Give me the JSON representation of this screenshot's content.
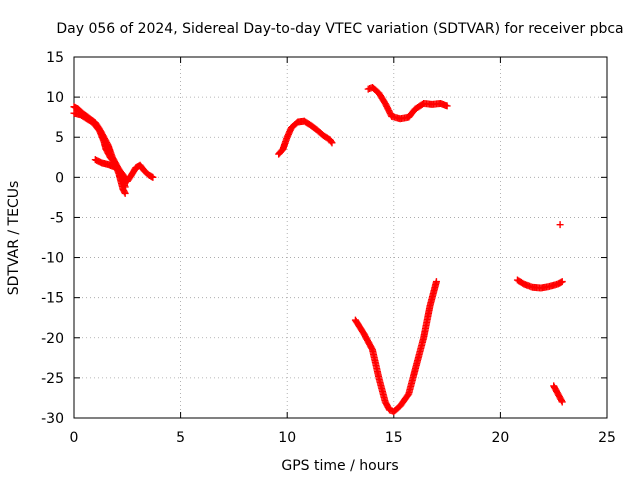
{
  "chart_data": {
    "type": "scatter",
    "title": "Day 056 of 2024, Sidereal Day-to-day VTEC variation (SDTVAR) for receiver pbca",
    "xlabel": "GPS time / hours",
    "ylabel": "SDTVAR / TECUs",
    "xlim": [
      0,
      25
    ],
    "ylim": [
      -30,
      15
    ],
    "xticks": [
      0,
      5,
      10,
      15,
      20,
      25
    ],
    "yticks": [
      15,
      10,
      5,
      0,
      -5,
      -10,
      -15,
      -20,
      -25,
      -30
    ],
    "grid": true,
    "marker": "plus",
    "color": "#ff0000",
    "series": [
      {
        "name": "arc-1",
        "points": [
          [
            0.0,
            8.8
          ],
          [
            0.2,
            8.5
          ],
          [
            0.4,
            8.0
          ],
          [
            0.6,
            7.6
          ],
          [
            0.8,
            7.2
          ],
          [
            1.0,
            6.8
          ],
          [
            1.2,
            6.0
          ],
          [
            1.4,
            5.0
          ],
          [
            1.6,
            4.0
          ],
          [
            1.8,
            2.5
          ],
          [
            2.0,
            1.5
          ],
          [
            2.2,
            0.5
          ],
          [
            2.3,
            -0.5
          ],
          [
            2.4,
            -1.2
          ]
        ]
      },
      {
        "name": "arc-2",
        "points": [
          [
            0.0,
            8.0
          ],
          [
            0.3,
            7.8
          ],
          [
            0.6,
            7.3
          ],
          [
            0.9,
            6.8
          ],
          [
            1.2,
            5.8
          ],
          [
            1.4,
            4.5
          ],
          [
            1.5,
            3.5
          ],
          [
            1.7,
            2.5
          ],
          [
            1.9,
            1.8
          ],
          [
            2.1,
            0.5
          ],
          [
            2.3,
            -1.5
          ],
          [
            2.4,
            -2.0
          ]
        ]
      },
      {
        "name": "arc-3",
        "points": [
          [
            1.0,
            2.2
          ],
          [
            1.3,
            1.8
          ],
          [
            1.6,
            1.6
          ],
          [
            1.9,
            1.3
          ],
          [
            2.1,
            1.0
          ],
          [
            2.3,
            0.3
          ],
          [
            2.5,
            -0.5
          ],
          [
            2.7,
            0.3
          ],
          [
            2.9,
            1.2
          ],
          [
            3.1,
            1.5
          ],
          [
            3.3,
            0.8
          ],
          [
            3.5,
            0.3
          ],
          [
            3.7,
            0.0
          ]
        ]
      },
      {
        "name": "arc-4",
        "points": [
          [
            9.6,
            2.9
          ],
          [
            9.8,
            3.5
          ],
          [
            10.0,
            5.0
          ],
          [
            10.2,
            6.2
          ],
          [
            10.5,
            6.9
          ],
          [
            10.8,
            7.0
          ],
          [
            11.1,
            6.5
          ],
          [
            11.4,
            5.9
          ],
          [
            11.7,
            5.2
          ],
          [
            12.0,
            4.7
          ],
          [
            12.1,
            4.3
          ]
        ]
      },
      {
        "name": "arc-5",
        "points": [
          [
            13.2,
            -17.8
          ],
          [
            13.6,
            -19.5
          ],
          [
            14.0,
            -21.5
          ],
          [
            14.3,
            -25.0
          ],
          [
            14.6,
            -28.0
          ],
          [
            14.8,
            -29.0
          ],
          [
            15.0,
            -29.2
          ],
          [
            15.3,
            -28.5
          ],
          [
            15.7,
            -27.0
          ],
          [
            16.0,
            -24.0
          ],
          [
            16.4,
            -20.0
          ],
          [
            16.7,
            -16.0
          ],
          [
            17.0,
            -13.0
          ]
        ]
      },
      {
        "name": "arc-6",
        "points": [
          [
            13.8,
            11.0
          ],
          [
            14.0,
            11.2
          ],
          [
            14.3,
            10.5
          ],
          [
            14.6,
            9.2
          ],
          [
            14.9,
            7.6
          ],
          [
            15.3,
            7.3
          ],
          [
            15.7,
            7.5
          ],
          [
            16.0,
            8.5
          ],
          [
            16.4,
            9.2
          ],
          [
            16.8,
            9.1
          ],
          [
            17.2,
            9.2
          ],
          [
            17.5,
            8.9
          ]
        ]
      },
      {
        "name": "arc-7",
        "points": [
          [
            20.8,
            -12.8
          ],
          [
            21.1,
            -13.3
          ],
          [
            21.5,
            -13.7
          ],
          [
            21.9,
            -13.8
          ],
          [
            22.3,
            -13.6
          ],
          [
            22.7,
            -13.3
          ],
          [
            22.9,
            -13.0
          ]
        ]
      },
      {
        "name": "arc-8",
        "points": [
          [
            22.8,
            -5.9
          ]
        ]
      },
      {
        "name": "arc-9",
        "points": [
          [
            22.5,
            -26.0
          ],
          [
            22.7,
            -27.0
          ],
          [
            22.9,
            -28.0
          ]
        ]
      }
    ]
  }
}
